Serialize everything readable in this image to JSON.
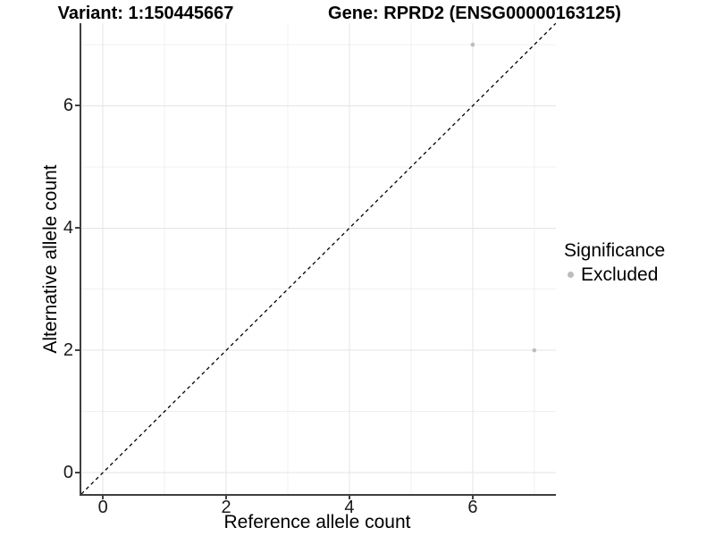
{
  "header": {
    "variant_title": "Variant: 1:150445667",
    "gene_title": "Gene: RPRD2 (ENSG00000163125)"
  },
  "legend": {
    "title": "Significance",
    "items": [
      {
        "label": "Excluded",
        "color": "#bdbdbd"
      }
    ]
  },
  "chart_data": {
    "type": "scatter",
    "title": "Variant: 1:150445667 — Gene: RPRD2 (ENSG00000163125)",
    "xlabel": "Reference allele count",
    "ylabel": "Alternative allele count",
    "xlim": [
      -0.35,
      7.35
    ],
    "ylim": [
      -0.35,
      7.35
    ],
    "x_major_ticks": [
      0,
      2,
      4,
      6
    ],
    "x_minor_ticks": [
      1,
      3,
      5,
      7
    ],
    "y_major_ticks": [
      0,
      2,
      4,
      6
    ],
    "y_minor_ticks": [
      1,
      3,
      5,
      7
    ],
    "grid": "major+minor light grey on white",
    "legend_position": "right-center",
    "series": [
      {
        "name": "Excluded",
        "color": "#bdbdbd",
        "marker": "circle",
        "points": [
          {
            "x": 6,
            "y": 7
          },
          {
            "x": 7,
            "y": 2
          }
        ]
      }
    ],
    "reference_line": {
      "slope": 1,
      "intercept": 0,
      "style": "dashed",
      "color": "#000000"
    },
    "colors": {
      "grid_major": "#e4e4e4",
      "grid_minor": "#f0f0f0",
      "axis_line": "#3f3f3f",
      "tick_text": "#1a1a1a"
    }
  }
}
